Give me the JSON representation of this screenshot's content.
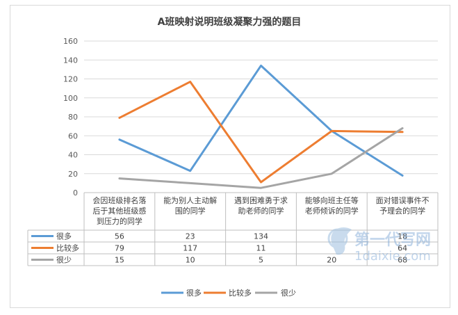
{
  "chart_data": {
    "type": "line",
    "title": "A班映射说明班级凝聚力强的题目",
    "categories": [
      [
        "会因班级排名落",
        "后于其他班级感",
        "到压力的同学"
      ],
      [
        "能为别人主动解",
        "围的同学"
      ],
      [
        "遇到困难勇于求",
        "助老师的同学"
      ],
      [
        "能够向班主任等",
        "老师倾诉的同学"
      ],
      [
        "面对错误事件不",
        "予理会的同学"
      ]
    ],
    "series": [
      {
        "name": "很多",
        "values": [
          56,
          23,
          134,
          65,
          18
        ],
        "color": "#5b9bd5",
        "table_text": [
          "56",
          "23",
          "134",
          "",
          "18"
        ]
      },
      {
        "name": "比较多",
        "values": [
          79,
          117,
          11,
          65,
          64
        ],
        "color": "#ed7d31",
        "table_text": [
          "79",
          "117",
          "11",
          "",
          "64"
        ]
      },
      {
        "name": "很少",
        "values": [
          15,
          10,
          5,
          20,
          68
        ],
        "color": "#a5a5a5",
        "table_text": [
          "15",
          "10",
          "5",
          "20",
          "68"
        ]
      }
    ],
    "ylim": [
      0,
      160
    ],
    "yticks": [
      0,
      20,
      40,
      60,
      80,
      100,
      120,
      140,
      160
    ],
    "grid": true,
    "legend_position": "bottom",
    "data_table": true
  },
  "watermark": {
    "line1": "第一代写网",
    "line2": "1daixie.com"
  }
}
